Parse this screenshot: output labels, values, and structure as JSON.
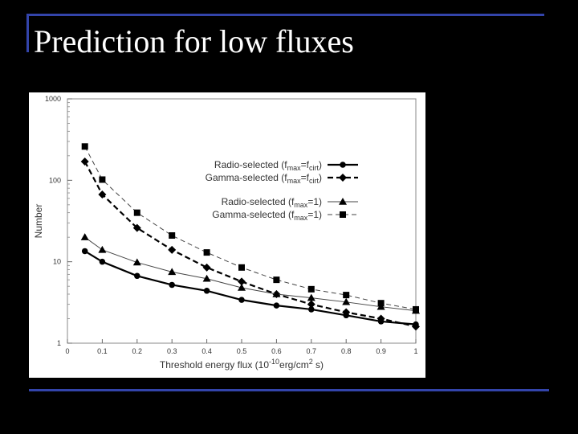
{
  "slide": {
    "title": "Prediction for low fluxes"
  },
  "chart_data": {
    "type": "line",
    "title": "",
    "xlabel": "Threshold energy flux (10",
    "xlabel_sup": "-10",
    "xlabel_tail": "erg/cm",
    "xlabel_sup2": "2",
    "xlabel_end": " s)",
    "ylabel": "Number",
    "xlim": [
      0,
      1
    ],
    "ylim": [
      1,
      1000
    ],
    "yscale": "log",
    "grid": false,
    "legend_position": "top-right",
    "x_ticks": [
      "0",
      "0.1",
      "0.2",
      "0.3",
      "0.4",
      "0.5",
      "0.6",
      "0.7",
      "0.8",
      "0.9",
      "1"
    ],
    "y_ticks": [
      {
        "value": 1,
        "label": "1"
      },
      {
        "value": 10,
        "label": "10"
      },
      {
        "value": 100,
        "label": "100"
      },
      {
        "value": 1000,
        "label": "1000"
      }
    ],
    "x": [
      0.05,
      0.1,
      0.2,
      0.3,
      0.4,
      0.5,
      0.6,
      0.7,
      0.8,
      0.9,
      1.0
    ],
    "series": [
      {
        "name": "Radio-selected (fmax=fcirt)",
        "legend": [
          "Radio-selected (f",
          "max",
          "=f",
          "cirt",
          ")"
        ],
        "marker": "circle",
        "line": "solid",
        "width": 2.2,
        "values": [
          13.5,
          10,
          6.7,
          5.2,
          4.4,
          3.4,
          2.9,
          2.6,
          2.2,
          1.85,
          1.7
        ]
      },
      {
        "name": "Gamma-selected (fmax=fcirt)",
        "legend": [
          "Gamma-selected (f",
          "max",
          "=f",
          "cirt",
          ")"
        ],
        "marker": "diamond",
        "line": "dashed-bold",
        "width": 2.2,
        "values": [
          170,
          67,
          26,
          14,
          8.5,
          5.7,
          4.0,
          3.0,
          2.4,
          2.0,
          1.6
        ]
      },
      {
        "name": "Radio-selected (fmax=1)",
        "legend": [
          "Radio-selected (f",
          "max",
          "=1)",
          "",
          ""
        ],
        "marker": "triangle",
        "line": "solid",
        "width": 1,
        "values": [
          20,
          14,
          9.8,
          7.5,
          6.2,
          4.8,
          4.0,
          3.6,
          3.2,
          2.8,
          2.5
        ]
      },
      {
        "name": "Gamma-selected (fmax=1)",
        "legend": [
          "Gamma-selected (f",
          "max",
          "=1)",
          "",
          ""
        ],
        "marker": "square",
        "line": "dashed",
        "width": 1,
        "values": [
          260,
          102,
          40,
          21,
          13,
          8.5,
          6.0,
          4.6,
          3.9,
          3.1,
          2.6
        ]
      }
    ]
  }
}
